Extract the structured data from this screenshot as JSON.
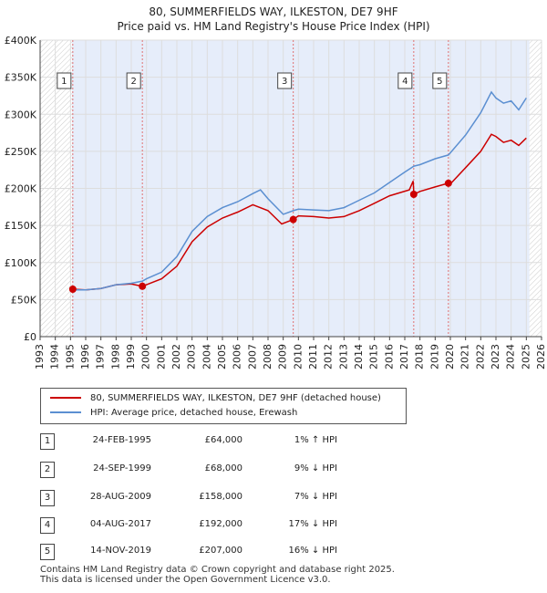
{
  "title_line1": "80, SUMMERFIELDS WAY, ILKESTON, DE7 9HF",
  "title_line2": "Price paid vs. HM Land Registry's House Price Index (HPI)",
  "legend": {
    "red_label": "80, SUMMERFIELDS WAY, ILKESTON, DE7 9HF (detached house)",
    "blue_label": "HPI: Average price, detached house, Erewash"
  },
  "colors": {
    "red": "#cc0000",
    "blue": "#5b8fd1",
    "grid": "#dddddd",
    "band": "#e6edfa"
  },
  "transactions": [
    {
      "num": "1",
      "date": "24-FEB-1995",
      "price": "£64,000",
      "hpi": "1% ↑ HPI"
    },
    {
      "num": "2",
      "date": "24-SEP-1999",
      "price": "£68,000",
      "hpi": "9% ↓ HPI"
    },
    {
      "num": "3",
      "date": "28-AUG-2009",
      "price": "£158,000",
      "hpi": "7% ↓ HPI"
    },
    {
      "num": "4",
      "date": "04-AUG-2017",
      "price": "£192,000",
      "hpi": "17% ↓ HPI"
    },
    {
      "num": "5",
      "date": "14-NOV-2019",
      "price": "£207,000",
      "hpi": "16% ↓ HPI"
    }
  ],
  "footer_line1": "Contains HM Land Registry data © Crown copyright and database right 2025.",
  "footer_line2": "This data is licensed under the Open Government Licence v3.0.",
  "chart_data": {
    "type": "line",
    "xlim": [
      1993,
      2026
    ],
    "ylim": [
      0,
      400000
    ],
    "x_ticks": [
      1993,
      1994,
      1995,
      1996,
      1997,
      1998,
      1999,
      2000,
      2001,
      2002,
      2003,
      2004,
      2005,
      2006,
      2007,
      2008,
      2009,
      2010,
      2011,
      2012,
      2013,
      2014,
      2015,
      2016,
      2017,
      2018,
      2019,
      2020,
      2021,
      2022,
      2023,
      2024,
      2025,
      2026
    ],
    "y_ticks": [
      {
        "value": 0,
        "label": "£0"
      },
      {
        "value": 50000,
        "label": "£50K"
      },
      {
        "value": 100000,
        "label": "£100K"
      },
      {
        "value": 150000,
        "label": "£150K"
      },
      {
        "value": 200000,
        "label": "£200K"
      },
      {
        "value": 250000,
        "label": "£250K"
      },
      {
        "value": 300000,
        "label": "£300K"
      },
      {
        "value": 350000,
        "label": "£350K"
      },
      {
        "value": 400000,
        "label": "£400K"
      }
    ],
    "shaded_band": [
      1995.1,
      2025.2
    ],
    "hatched_regions": [
      [
        1993,
        1995.1
      ],
      [
        2025.2,
        2026
      ]
    ],
    "series": [
      {
        "name": "80, SUMMERFIELDS WAY, ILKESTON, DE7 9HF (detached house)",
        "color": "#cc0000",
        "points": [
          [
            1995.15,
            64000
          ],
          [
            1996,
            63000
          ],
          [
            1997,
            65000
          ],
          [
            1998,
            70000
          ],
          [
            1999,
            71000
          ],
          [
            1999.73,
            68000
          ],
          [
            2000,
            70000
          ],
          [
            2001,
            78000
          ],
          [
            2002,
            95000
          ],
          [
            2003,
            128000
          ],
          [
            2004,
            148000
          ],
          [
            2005,
            160000
          ],
          [
            2006,
            168000
          ],
          [
            2007,
            178000
          ],
          [
            2008,
            170000
          ],
          [
            2008.9,
            152000
          ],
          [
            2009.66,
            158000
          ],
          [
            2010,
            163000
          ],
          [
            2011,
            162000
          ],
          [
            2012,
            160000
          ],
          [
            2013,
            162000
          ],
          [
            2014,
            170000
          ],
          [
            2015,
            180000
          ],
          [
            2016,
            190000
          ],
          [
            2017.3,
            198000
          ],
          [
            2017.55,
            210000
          ],
          [
            2017.6,
            192000
          ],
          [
            2018,
            196000
          ],
          [
            2019,
            202000
          ],
          [
            2019.87,
            207000
          ],
          [
            2020,
            206000
          ],
          [
            2021,
            228000
          ],
          [
            2022,
            250000
          ],
          [
            2022.7,
            273000
          ],
          [
            2023,
            270000
          ],
          [
            2023.5,
            262000
          ],
          [
            2024,
            265000
          ],
          [
            2024.5,
            258000
          ],
          [
            2025,
            268000
          ]
        ]
      },
      {
        "name": "HPI: Average price, detached house, Erewash",
        "color": "#5b8fd1",
        "points": [
          [
            1995.15,
            63000
          ],
          [
            1996,
            63000
          ],
          [
            1997,
            65000
          ],
          [
            1998,
            70000
          ],
          [
            1999,
            72000
          ],
          [
            1999.73,
            75000
          ],
          [
            2000,
            78000
          ],
          [
            2001,
            87000
          ],
          [
            2002,
            108000
          ],
          [
            2003,
            142000
          ],
          [
            2004,
            162000
          ],
          [
            2005,
            174000
          ],
          [
            2006,
            182000
          ],
          [
            2007,
            193000
          ],
          [
            2007.5,
            198000
          ],
          [
            2008,
            186000
          ],
          [
            2009,
            165000
          ],
          [
            2009.66,
            170000
          ],
          [
            2010,
            172000
          ],
          [
            2011,
            171000
          ],
          [
            2012,
            170000
          ],
          [
            2013,
            174000
          ],
          [
            2014,
            184000
          ],
          [
            2015,
            194000
          ],
          [
            2016,
            208000
          ],
          [
            2017,
            222000
          ],
          [
            2017.6,
            230000
          ],
          [
            2018,
            232000
          ],
          [
            2019,
            240000
          ],
          [
            2019.87,
            245000
          ],
          [
            2020,
            248000
          ],
          [
            2021,
            272000
          ],
          [
            2022,
            302000
          ],
          [
            2022.7,
            330000
          ],
          [
            2023,
            322000
          ],
          [
            2023.5,
            315000
          ],
          [
            2024,
            318000
          ],
          [
            2024.5,
            306000
          ],
          [
            2025,
            322000
          ]
        ]
      }
    ],
    "sale_points": [
      {
        "label": "1",
        "x": 1995.15,
        "y": 64000
      },
      {
        "label": "2",
        "x": 1999.73,
        "y": 68000
      },
      {
        "label": "3",
        "x": 2009.66,
        "y": 158000
      },
      {
        "label": "4",
        "x": 2017.59,
        "y": 192000
      },
      {
        "label": "5",
        "x": 2019.87,
        "y": 207000
      }
    ]
  }
}
